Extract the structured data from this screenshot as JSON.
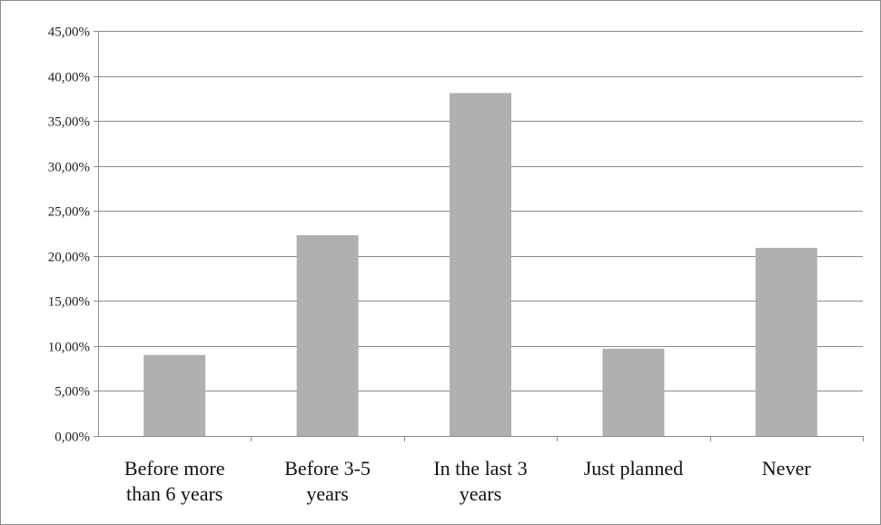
{
  "chart_data": {
    "type": "bar",
    "title": "",
    "xlabel": "",
    "ylabel": "",
    "categories": [
      [
        "Before more",
        "than 6 years"
      ],
      [
        "Before 3-5",
        "years"
      ],
      [
        "In the last 3",
        "years"
      ],
      [
        "Just planned"
      ],
      [
        "Never"
      ]
    ],
    "values": [
      9.0,
      22.3,
      38.1,
      9.7,
      20.9
    ],
    "ylim": [
      0,
      45
    ],
    "yticks": [
      0,
      5,
      10,
      15,
      20,
      25,
      30,
      35,
      40,
      45
    ],
    "ytick_labels": [
      "0,00%",
      "5,00%",
      "10,00%",
      "15,00%",
      "20,00%",
      "25,00%",
      "30,00%",
      "35,00%",
      "40,00%",
      "45,00%"
    ],
    "grid": true,
    "legend": "none",
    "bar_color": "#b0b0b0",
    "grid_color": "#8c8c8c"
  }
}
